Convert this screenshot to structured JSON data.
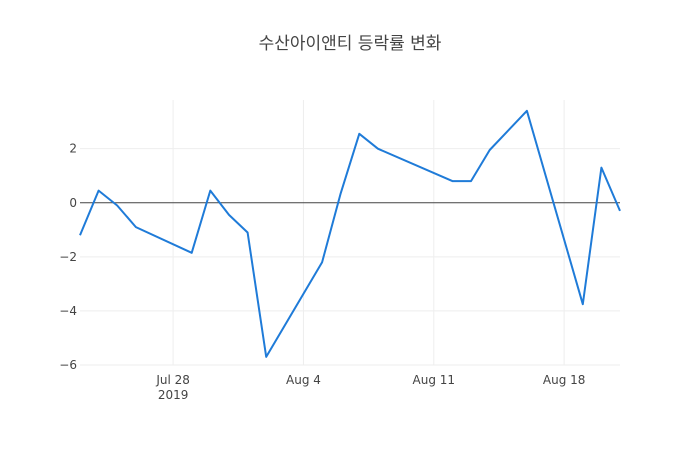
{
  "chart_data": {
    "type": "line",
    "title": "수산아이앤티 등락률 변화",
    "xlabel": "",
    "ylabel": "",
    "xlim": [
      "2019-07-23",
      "2019-08-21"
    ],
    "ylim": [
      -6,
      3.8
    ],
    "x_ticks": [
      {
        "date": "2019-07-28",
        "label": "Jul 28",
        "sublabel": "2019"
      },
      {
        "date": "2019-08-04",
        "label": "Aug 4",
        "sublabel": ""
      },
      {
        "date": "2019-08-11",
        "label": "Aug 11",
        "sublabel": ""
      },
      {
        "date": "2019-08-18",
        "label": "Aug 18",
        "sublabel": ""
      }
    ],
    "y_ticks": [
      {
        "value": 2,
        "label": "2"
      },
      {
        "value": 0,
        "label": "0"
      },
      {
        "value": -2,
        "label": "−2"
      },
      {
        "value": -4,
        "label": "−4"
      },
      {
        "value": -6,
        "label": "−6"
      }
    ],
    "grid": true,
    "zero_line": true,
    "line_color": "#1f7bd8",
    "series": [
      {
        "x": [
          "2019-07-23",
          "2019-07-24",
          "2019-07-25",
          "2019-07-26",
          "2019-07-29",
          "2019-07-30",
          "2019-07-31",
          "2019-08-01",
          "2019-08-02",
          "2019-08-05",
          "2019-08-06",
          "2019-08-07",
          "2019-08-08",
          "2019-08-12",
          "2019-08-13",
          "2019-08-14",
          "2019-08-16",
          "2019-08-19",
          "2019-08-20",
          "2019-08-21"
        ],
        "y": [
          -1.2,
          0.45,
          -0.1,
          -0.9,
          -1.85,
          0.45,
          -0.45,
          -1.1,
          -5.7,
          -2.2,
          0.35,
          2.55,
          2.0,
          0.8,
          0.8,
          1.95,
          3.4,
          -3.75,
          1.3,
          -0.3
        ]
      }
    ]
  }
}
